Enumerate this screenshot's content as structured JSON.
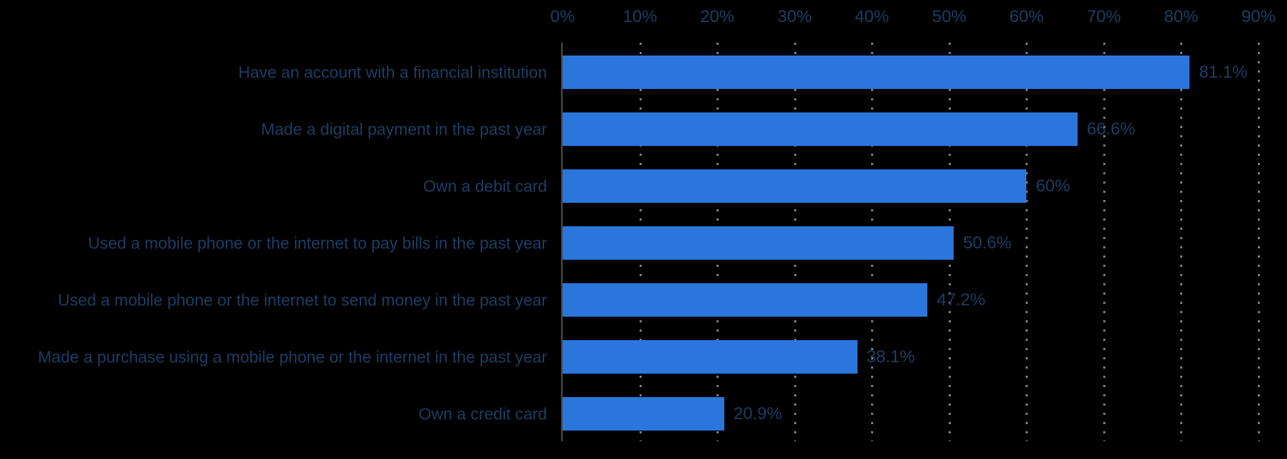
{
  "chart_data": {
    "type": "bar",
    "orientation": "horizontal",
    "title": "",
    "categories": [
      "Have an account with a financial institution",
      "Made a digital payment in the past year",
      "Own a debit card",
      "Used a mobile phone or the internet to pay bills in the past year",
      "Used a mobile phone or the internet to send money in the past year",
      "Made a purchase using a mobile phone or the internet in the past year",
      "Own a credit card"
    ],
    "values": [
      81.1,
      66.6,
      60,
      50.6,
      47.2,
      38.1,
      20.9
    ],
    "value_labels": [
      "81.1%",
      "66.6%",
      "60%",
      "50.6%",
      "47.2%",
      "38.1%",
      "20.9%"
    ],
    "x_tick_labels": [
      "0%",
      "10%",
      "20%",
      "30%",
      "40%",
      "50%",
      "60%",
      "70%",
      "80%",
      "90%"
    ],
    "xlim": [
      0,
      90
    ],
    "x_axis_position": "top",
    "grid": "vertical-dotted",
    "legend": "none",
    "colors": {
      "background": "#000000",
      "bar": "#2a76dc",
      "text": "#1d3c62",
      "axis_line": "#4d4d4d",
      "gridline": "#7d7d7d"
    }
  }
}
